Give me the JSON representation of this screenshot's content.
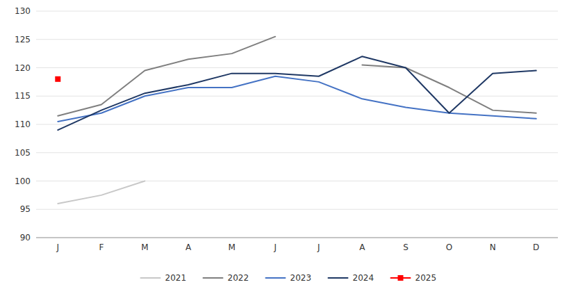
{
  "chart_data": {
    "type": "line",
    "categories": [
      "J",
      "F",
      "M",
      "A",
      "M",
      "J",
      "J",
      "A",
      "S",
      "O",
      "N",
      "D"
    ],
    "series": [
      {
        "name": "2021",
        "color": "#c8c8c8",
        "values": [
          96.0,
          97.5,
          100.0,
          null,
          null,
          null,
          null,
          null,
          null,
          null,
          null,
          null
        ]
      },
      {
        "name": "2022",
        "color": "#7f7f7f",
        "values": [
          111.5,
          113.5,
          119.5,
          121.5,
          122.5,
          125.5,
          null,
          120.5,
          120.0,
          116.5,
          112.5,
          112.0
        ]
      },
      {
        "name": "2023",
        "color": "#4472c4",
        "values": [
          110.5,
          112.0,
          115.0,
          116.5,
          116.5,
          118.5,
          117.5,
          114.5,
          113.0,
          112.0,
          111.5,
          111.0
        ]
      },
      {
        "name": "2024",
        "color": "#1f3864",
        "values": [
          109.0,
          112.5,
          115.5,
          117.0,
          119.0,
          119.0,
          118.5,
          122.0,
          120.0,
          112.0,
          119.0,
          119.5
        ]
      },
      {
        "name": "2025",
        "color": "#ff0000",
        "marker": "square",
        "values": [
          118.0,
          null,
          null,
          null,
          null,
          null,
          null,
          null,
          null,
          null,
          null,
          null
        ]
      }
    ],
    "ylim": [
      90,
      130
    ],
    "yticks": [
      90,
      95,
      100,
      105,
      110,
      115,
      120,
      125,
      130
    ],
    "grid": true,
    "legend": "bottom"
  }
}
